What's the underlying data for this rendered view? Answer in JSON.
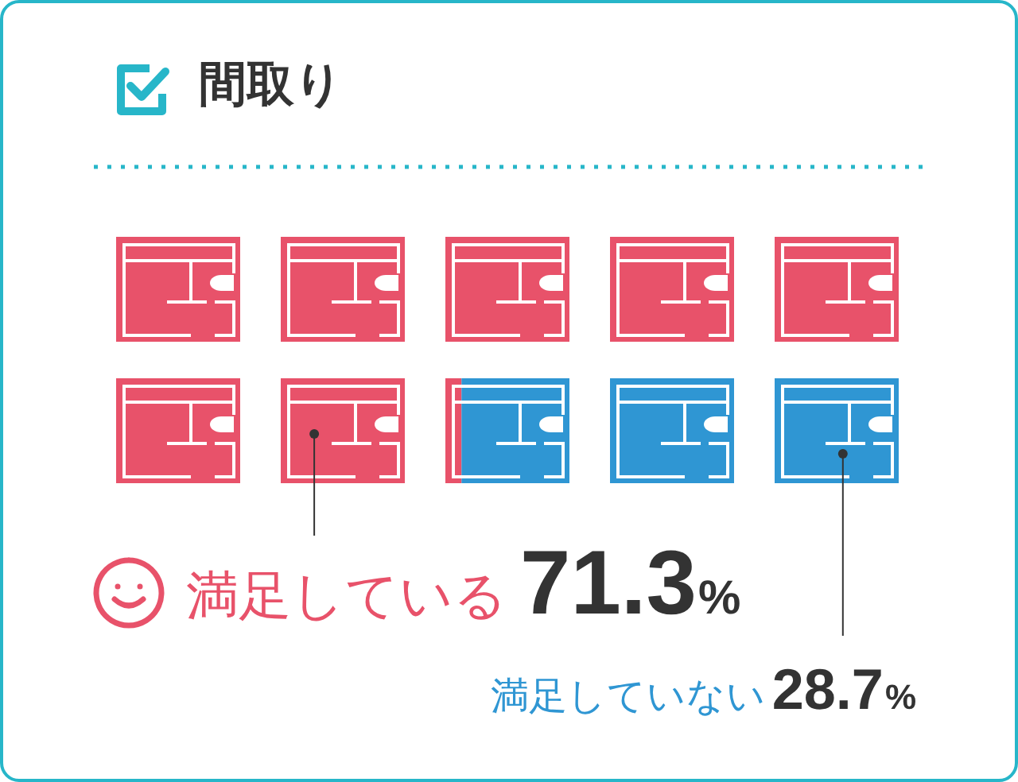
{
  "chart_data": {
    "type": "other",
    "title": "間取り",
    "categories": [
      "満足している",
      "満足していない"
    ],
    "values": [
      71.3,
      28.7
    ],
    "value_labels": [
      "71.3%",
      "28.7%"
    ],
    "colors": [
      "#e8526a",
      "#2f96d3"
    ]
  }
}
